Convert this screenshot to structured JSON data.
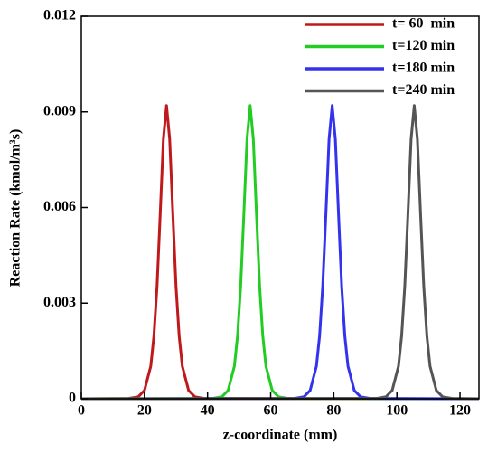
{
  "chart_data": {
    "type": "line",
    "xlabel": "z-coordinate (mm)",
    "ylabel": "Reaction Rate (kmol/m³s)",
    "xlim": [
      0,
      126
    ],
    "xticks": [
      0,
      20,
      40,
      60,
      80,
      100,
      120
    ],
    "ylim": [
      0,
      0.012
    ],
    "yticks": [
      0,
      0.003,
      0.006,
      0.009,
      0.012
    ],
    "legend": "upper right",
    "series": [
      {
        "name": "t= 60  min",
        "color": "#c0191c",
        "x": [
          0,
          15,
          18,
          20,
          22,
          23,
          24,
          25,
          26,
          27,
          28,
          29,
          30,
          31,
          32,
          34,
          36,
          39,
          126
        ],
        "values": [
          0,
          1e-05,
          6e-05,
          0.00026,
          0.00102,
          0.00197,
          0.00354,
          0.0058,
          0.00814,
          0.0092,
          0.00814,
          0.0058,
          0.00354,
          0.00197,
          0.00102,
          0.00026,
          6e-05,
          1e-05,
          0
        ]
      },
      {
        "name": "t=120 min",
        "color": "#22cc22",
        "x": [
          0,
          41.5,
          44.5,
          46.5,
          48.5,
          49.5,
          50.5,
          51.5,
          52.5,
          53.5,
          54.5,
          55.5,
          56.5,
          57.5,
          58.5,
          60.5,
          62.5,
          65.5,
          126
        ],
        "values": [
          0,
          1e-05,
          6e-05,
          0.00026,
          0.00102,
          0.00197,
          0.00354,
          0.0058,
          0.00814,
          0.0092,
          0.00814,
          0.0058,
          0.00354,
          0.00197,
          0.00102,
          0.00026,
          6e-05,
          1e-05,
          0
        ]
      },
      {
        "name": "t=180 min",
        "color": "#3333ee",
        "x": [
          0,
          67.5,
          70.5,
          72.5,
          74.5,
          75.5,
          76.5,
          77.5,
          78.5,
          79.5,
          80.5,
          81.5,
          82.5,
          83.5,
          84.5,
          86.5,
          88.5,
          91.5,
          126
        ],
        "values": [
          0,
          1e-05,
          6e-05,
          0.00026,
          0.00102,
          0.00197,
          0.00354,
          0.0058,
          0.00814,
          0.0092,
          0.00814,
          0.0058,
          0.00354,
          0.00197,
          0.00102,
          0.00026,
          6e-05,
          1e-05,
          0
        ]
      },
      {
        "name": "t=240 min",
        "color": "#555555",
        "x": [
          0,
          93.5,
          96.5,
          98.5,
          100.5,
          101.5,
          102.5,
          103.5,
          104.5,
          105.5,
          106.5,
          107.5,
          108.5,
          109.5,
          110.5,
          112.5,
          114.5,
          117.5,
          126
        ],
        "values": [
          0,
          1e-05,
          6e-05,
          0.00026,
          0.00102,
          0.00197,
          0.00354,
          0.0058,
          0.00814,
          0.0092,
          0.00814,
          0.0058,
          0.00354,
          0.00197,
          0.00102,
          0.00026,
          6e-05,
          1e-05,
          0
        ]
      }
    ]
  }
}
